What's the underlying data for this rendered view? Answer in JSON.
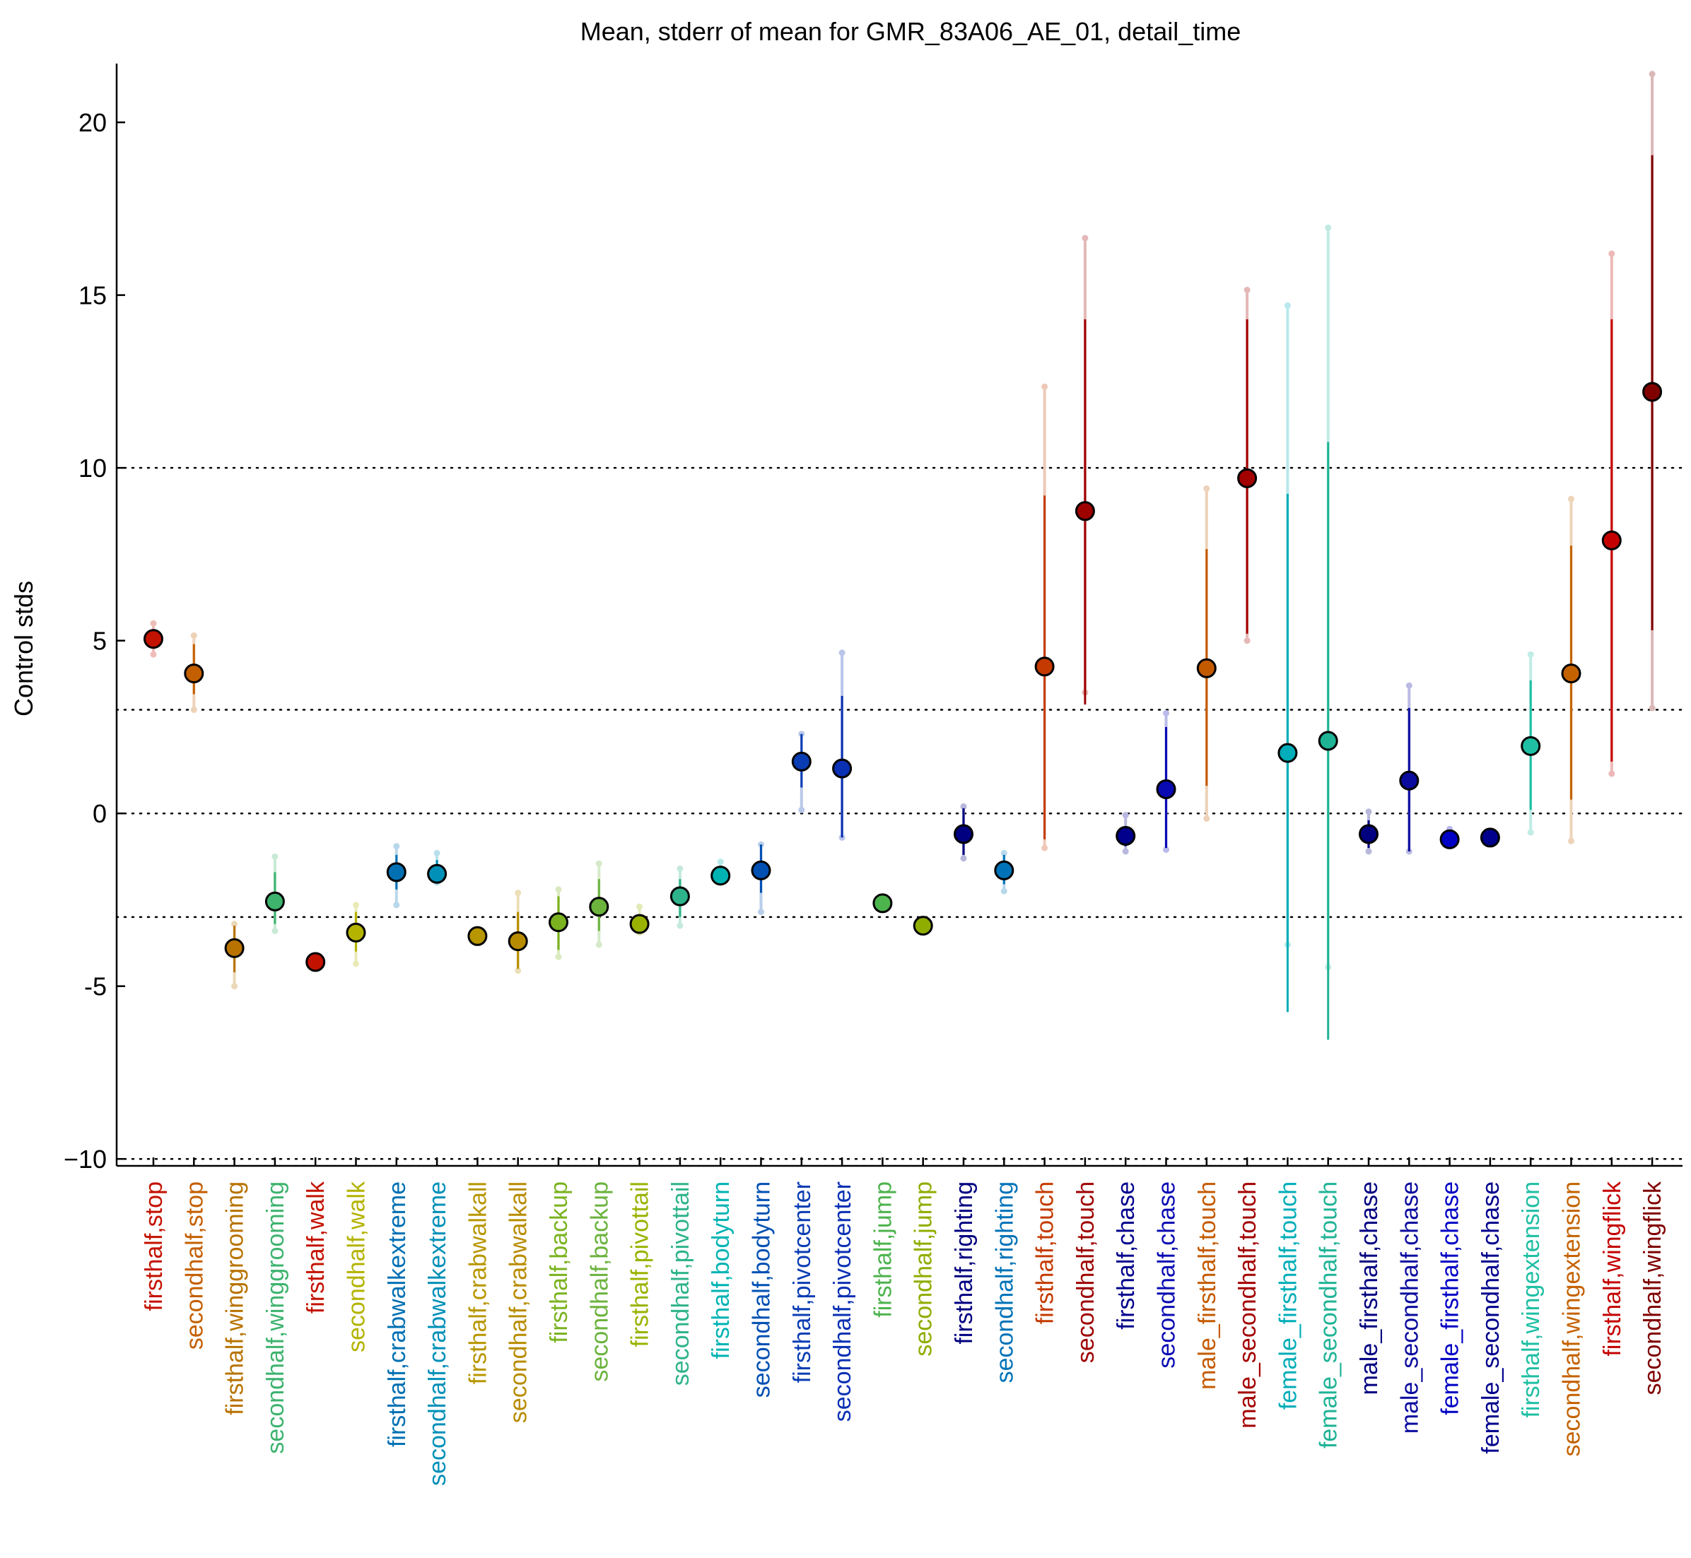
{
  "chart_data": {
    "type": "scatter",
    "title": "Mean, stderr of mean for GMR_83A06_AE_01, detail_time",
    "xlabel": "",
    "ylabel": "Control stds",
    "ylim": [
      -10.2,
      21.7
    ],
    "yticks": [
      -10,
      -5,
      0,
      5,
      10,
      15,
      20
    ],
    "ytick_labels": [
      "−10",
      "-5",
      "0",
      "5",
      "10",
      "15",
      "20"
    ],
    "reference_lines": [
      -10,
      -3,
      0,
      3,
      10
    ],
    "grid": false,
    "points": [
      {
        "label": "firsthalf,stop",
        "mean": 5.05,
        "sem_low": 4.85,
        "sem_high": 5.3,
        "range_low": 4.6,
        "range_high": 5.5,
        "color": "#c41200"
      },
      {
        "label": "secondhalf,stop",
        "mean": 4.05,
        "sem_low": 3.45,
        "sem_high": 4.9,
        "range_low": 3.0,
        "range_high": 5.15,
        "color": "#c45f00"
      },
      {
        "label": "firsthalf,winggrooming",
        "mean": -3.9,
        "sem_low": -4.6,
        "sem_high": -3.25,
        "range_low": -5.0,
        "range_high": -3.2,
        "color": "#b87300"
      },
      {
        "label": "secondhalf,winggrooming",
        "mean": -2.55,
        "sem_low": -3.2,
        "sem_high": -1.7,
        "range_low": -3.4,
        "range_high": -1.25,
        "color": "#3db36e"
      },
      {
        "label": "firsthalf,walk",
        "mean": -4.3,
        "sem_low": -4.4,
        "sem_high": -4.2,
        "range_low": -4.45,
        "range_high": -4.15,
        "color": "#c41200"
      },
      {
        "label": "secondhalf,walk",
        "mean": -3.45,
        "sem_low": -4.0,
        "sem_high": -2.85,
        "range_low": -4.35,
        "range_high": -2.65,
        "color": "#b3b300"
      },
      {
        "label": "firsthalf,crabwalkextreme",
        "mean": -1.7,
        "sem_low": -2.2,
        "sem_high": -1.2,
        "range_low": -2.65,
        "range_high": -0.95,
        "color": "#0070b3"
      },
      {
        "label": "secondhalf,crabwalkextreme",
        "mean": -1.75,
        "sem_low": -1.95,
        "sem_high": -1.35,
        "range_low": -2.0,
        "range_high": -1.15,
        "color": "#0090b8"
      },
      {
        "label": "firsthalf,crabwalkall",
        "mean": -3.55,
        "sem_low": -3.7,
        "sem_high": -3.4,
        "range_low": -3.75,
        "range_high": -3.35,
        "color": "#b89600"
      },
      {
        "label": "secondhalf,crabwalkall",
        "mean": -3.7,
        "sem_low": -4.5,
        "sem_high": -2.85,
        "range_low": -4.55,
        "range_high": -2.3,
        "color": "#b88c00"
      },
      {
        "label": "firsthalf,backup",
        "mean": -3.15,
        "sem_low": -3.95,
        "sem_high": -2.4,
        "range_low": -4.15,
        "range_high": -2.2,
        "color": "#7ab31f"
      },
      {
        "label": "secondhalf,backup",
        "mean": -2.7,
        "sem_low": -3.4,
        "sem_high": -1.9,
        "range_low": -3.8,
        "range_high": -1.45,
        "color": "#6bb33d"
      },
      {
        "label": "firsthalf,pivottail",
        "mean": -3.2,
        "sem_low": -3.4,
        "sem_high": -3.0,
        "range_low": -3.45,
        "range_high": -2.7,
        "color": "#9ab300"
      },
      {
        "label": "secondhalf,pivottail",
        "mean": -2.4,
        "sem_low": -3.0,
        "sem_high": -1.9,
        "range_low": -3.25,
        "range_high": -1.6,
        "color": "#2eb38a"
      },
      {
        "label": "firsthalf,bodyturn",
        "mean": -1.8,
        "sem_low": -1.95,
        "sem_high": -1.55,
        "range_low": -2.0,
        "range_high": -1.4,
        "color": "#00b3b3"
      },
      {
        "label": "secondhalf,bodyturn",
        "mean": -1.65,
        "sem_low": -2.3,
        "sem_high": -0.9,
        "range_low": -2.85,
        "range_high": -0.9,
        "color": "#0050b3"
      },
      {
        "label": "firsthalf,pivotcenter",
        "mean": 1.5,
        "sem_low": 0.75,
        "sem_high": 2.3,
        "range_low": 0.1,
        "range_high": 2.3,
        "color": "#0a3db3"
      },
      {
        "label": "secondhalf,pivotcenter",
        "mean": 1.3,
        "sem_low": -0.7,
        "sem_high": 3.4,
        "range_low": -0.7,
        "range_high": 4.65,
        "color": "#0a30b3"
      },
      {
        "label": "firsthalf,jump",
        "mean": -2.6,
        "sem_low": -2.7,
        "sem_high": -2.55,
        "range_low": -2.75,
        "range_high": -2.5,
        "color": "#4db34d"
      },
      {
        "label": "secondhalf,jump",
        "mean": -3.25,
        "sem_low": -3.35,
        "sem_high": -3.15,
        "range_low": -3.4,
        "range_high": -3.1,
        "color": "#8fad00"
      },
      {
        "label": "firsthalf,righting",
        "mean": -0.6,
        "sem_low": -1.2,
        "sem_high": 0.15,
        "range_low": -1.3,
        "range_high": 0.2,
        "color": "#000080"
      },
      {
        "label": "secondhalf,righting",
        "mean": -1.65,
        "sem_low": -2.05,
        "sem_high": -1.2,
        "range_low": -2.25,
        "range_high": -1.15,
        "color": "#0073b8"
      },
      {
        "label": "firsthalf,touch",
        "mean": 4.25,
        "sem_low": -0.75,
        "sem_high": 9.2,
        "range_low": -1.0,
        "range_high": 12.35,
        "color": "#c43a00"
      },
      {
        "label": "secondhalf,touch",
        "mean": 8.75,
        "sem_low": 3.15,
        "sem_high": 14.3,
        "range_low": 3.5,
        "range_high": 16.65,
        "color": "#9e0000"
      },
      {
        "label": "firsthalf,chase",
        "mean": -0.65,
        "sem_low": -0.95,
        "sem_high": -0.4,
        "range_low": -1.1,
        "range_high": -0.05,
        "color": "#00008c"
      },
      {
        "label": "secondhalf,chase",
        "mean": 0.7,
        "sem_low": -1.0,
        "sem_high": 2.5,
        "range_low": -1.05,
        "range_high": 2.9,
        "color": "#0a0ab3"
      },
      {
        "label": "male_firsthalf,touch",
        "mean": 4.2,
        "sem_low": 0.8,
        "sem_high": 7.65,
        "range_low": -0.15,
        "range_high": 9.4,
        "color": "#c45a00"
      },
      {
        "label": "male_secondhalf,touch",
        "mean": 9.7,
        "sem_low": 5.2,
        "sem_high": 14.3,
        "range_low": 5.0,
        "range_high": 15.15,
        "color": "#a30000"
      },
      {
        "label": "female_firsthalf,touch",
        "mean": 1.75,
        "sem_low": -5.75,
        "sem_high": 9.25,
        "range_low": -3.8,
        "range_high": 14.7,
        "color": "#00adb8"
      },
      {
        "label": "female_secondhalf,touch",
        "mean": 2.1,
        "sem_low": -6.55,
        "sem_high": 10.75,
        "range_low": -4.45,
        "range_high": 16.95,
        "color": "#1fb396"
      },
      {
        "label": "male_firsthalf,chase",
        "mean": -0.6,
        "sem_low": -1.0,
        "sem_high": -0.2,
        "range_low": -1.1,
        "range_high": 0.05,
        "color": "#000080"
      },
      {
        "label": "male_secondhalf,chase",
        "mean": 0.95,
        "sem_low": -1.1,
        "sem_high": 3.05,
        "range_low": -1.1,
        "range_high": 3.7,
        "color": "#0a0a9e"
      },
      {
        "label": "female_firsthalf,chase",
        "mean": -0.75,
        "sem_low": -0.8,
        "sem_high": -0.5,
        "range_low": -0.85,
        "range_high": -0.45,
        "color": "#0000c4"
      },
      {
        "label": "female_secondhalf,chase",
        "mean": -0.7,
        "sem_low": -0.75,
        "sem_high": -0.65,
        "range_low": -0.75,
        "range_high": -0.6,
        "color": "#00008c"
      },
      {
        "label": "firsthalf,wingextension",
        "mean": 1.95,
        "sem_low": 0.1,
        "sem_high": 3.85,
        "range_low": -0.55,
        "range_high": 4.6,
        "color": "#1fbfa3"
      },
      {
        "label": "secondhalf,wingextension",
        "mean": 4.05,
        "sem_low": 0.4,
        "sem_high": 7.75,
        "range_low": -0.8,
        "range_high": 9.1,
        "color": "#c46200"
      },
      {
        "label": "firsthalf,wingflick",
        "mean": 7.9,
        "sem_low": 1.5,
        "sem_high": 14.3,
        "range_low": 1.15,
        "range_high": 16.2,
        "color": "#c40000"
      },
      {
        "label": "secondhalf,wingflick",
        "mean": 12.2,
        "sem_low": 5.3,
        "sem_high": 19.05,
        "range_low": 3.05,
        "range_high": 21.4,
        "color": "#800000"
      }
    ]
  }
}
